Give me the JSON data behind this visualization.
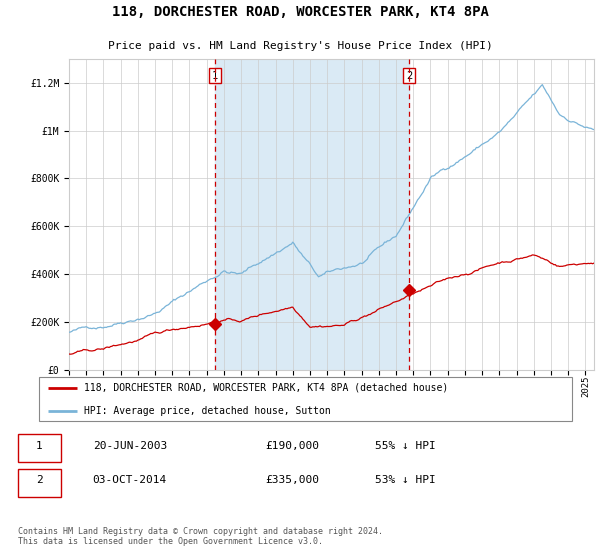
{
  "title": "118, DORCHESTER ROAD, WORCESTER PARK, KT4 8PA",
  "subtitle": "Price paid vs. HM Land Registry's House Price Index (HPI)",
  "legend_line1": "118, DORCHESTER ROAD, WORCESTER PARK, KT4 8PA (detached house)",
  "legend_line2": "HPI: Average price, detached house, Sutton",
  "annotation1_date": "20-JUN-2003",
  "annotation1_price": "£190,000",
  "annotation1_hpi": "55% ↓ HPI",
  "annotation1_year": 2003.47,
  "annotation1_price_val": 190000,
  "annotation2_date": "03-OCT-2014",
  "annotation2_price": "£335,000",
  "annotation2_hpi": "53% ↓ HPI",
  "annotation2_year": 2014.75,
  "annotation2_price_val": 335000,
  "hpi_color": "#7ab4d8",
  "price_color": "#cc0000",
  "shading_color": "#daeaf5",
  "dashed_color": "#cc0000",
  "background_color": "#ffffff",
  "grid_color": "#cccccc",
  "ylim_max": 1300000,
  "xlim_start": 1995,
  "xlim_end": 2025.5,
  "footer": "Contains HM Land Registry data © Crown copyright and database right 2024.\nThis data is licensed under the Open Government Licence v3.0."
}
